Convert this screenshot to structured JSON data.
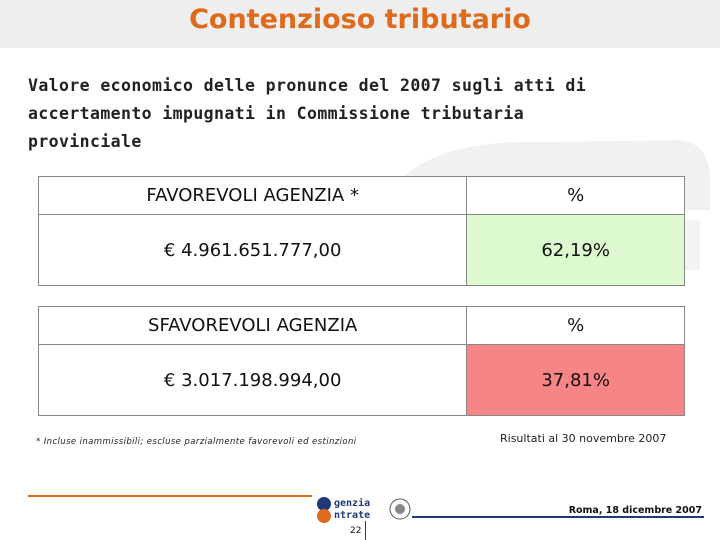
{
  "header": {
    "title": "Contenzioso tributario"
  },
  "subtitle_lines": [
    "Valore economico delle pronunce del 2007 sugli atti di",
    "accertamento impugnati in Commissione tributaria",
    "provinciale"
  ],
  "tables": [
    {
      "label_header": "FAVOREVOLI AGENZIA *",
      "pct_header": "%",
      "amount": "€ 4.961.651.777,00",
      "percentage": "62,19%",
      "highlight_color": "#ddf9cf"
    },
    {
      "label_header": "SFAVOREVOLI AGENZIA",
      "pct_header": "%",
      "amount": "€ 3.017.198.994,00",
      "percentage": "37,81%",
      "highlight_color": "#f78585"
    }
  ],
  "footnote": "* Incluse inammissibili; escluse parzialmente favorevoli ed estinzioni",
  "as_of": "Risultati al 30 novembre 2007",
  "footer": {
    "logo_line1": "genzia",
    "logo_line2": "ntrate",
    "date": "Roma, 18 dicembre 2007",
    "page_number": "22"
  },
  "colors": {
    "title": "#e06a1c",
    "brand_blue": "#1e3a7a"
  }
}
